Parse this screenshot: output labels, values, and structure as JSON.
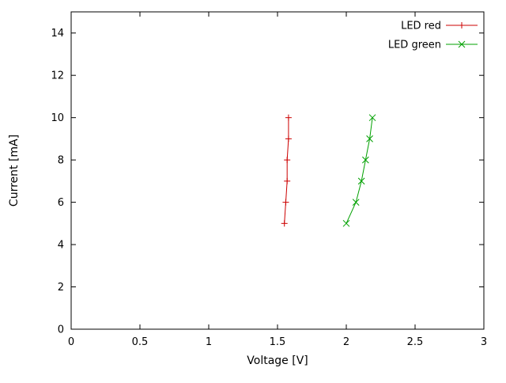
{
  "chart_data": {
    "type": "line",
    "title": "",
    "xlabel": "Voltage [V]",
    "ylabel": "Current [mA]",
    "xlim": [
      0,
      3
    ],
    "ylim": [
      0,
      15
    ],
    "xticks": [
      0,
      0.5,
      1,
      1.5,
      2,
      2.5,
      3
    ],
    "xtick_labels": [
      "0",
      "0.5",
      "1",
      "1.5",
      "2",
      "2.5",
      "3"
    ],
    "yticks": [
      0,
      2,
      4,
      6,
      8,
      10,
      12,
      14
    ],
    "ytick_labels": [
      "0",
      "2",
      "4",
      "6",
      "8",
      "10",
      "12",
      "14"
    ],
    "grid": false,
    "legend_position": "top-right-inside",
    "series": [
      {
        "name": "LED red",
        "color": "#cc0000",
        "marker": "plus",
        "points": [
          [
            1.55,
            5
          ],
          [
            1.56,
            6
          ],
          [
            1.57,
            7
          ],
          [
            1.57,
            8
          ],
          [
            1.58,
            9
          ],
          [
            1.58,
            10
          ]
        ]
      },
      {
        "name": "LED green",
        "color": "#00a000",
        "marker": "x",
        "points": [
          [
            2.0,
            5
          ],
          [
            2.07,
            6
          ],
          [
            2.11,
            7
          ],
          [
            2.14,
            8
          ],
          [
            2.17,
            9
          ],
          [
            2.19,
            10
          ]
        ]
      }
    ]
  }
}
